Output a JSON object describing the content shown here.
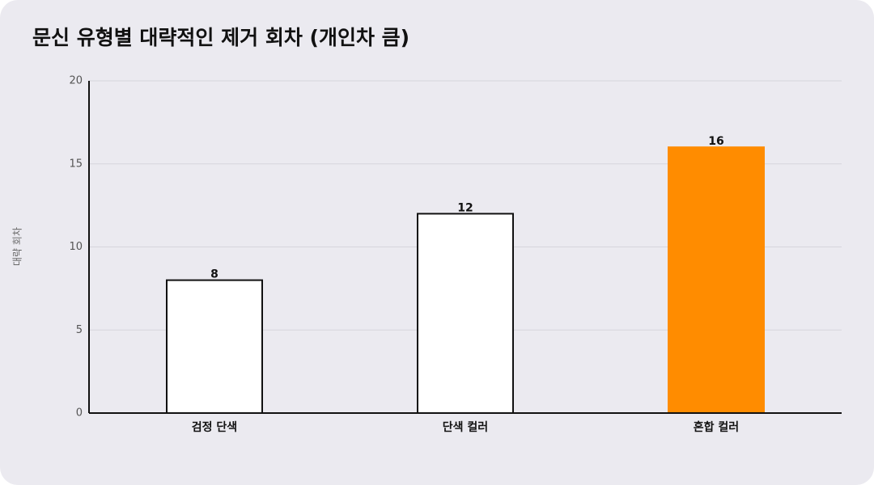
{
  "chart_data": {
    "type": "bar",
    "title": "문신 유형별 대략적인 제거 회차 (개인차 큼)",
    "y_label": "대략 회차",
    "categories": [
      "검정 단색",
      "단색 컬러",
      "혼합 컬러"
    ],
    "values": [
      8,
      12,
      16
    ],
    "colors": [
      "#ffffff",
      "#ffffff",
      "#ff8c00"
    ],
    "ylim": [
      0,
      20
    ],
    "yticks": [
      0,
      5,
      10,
      15,
      20
    ],
    "grid": true
  }
}
